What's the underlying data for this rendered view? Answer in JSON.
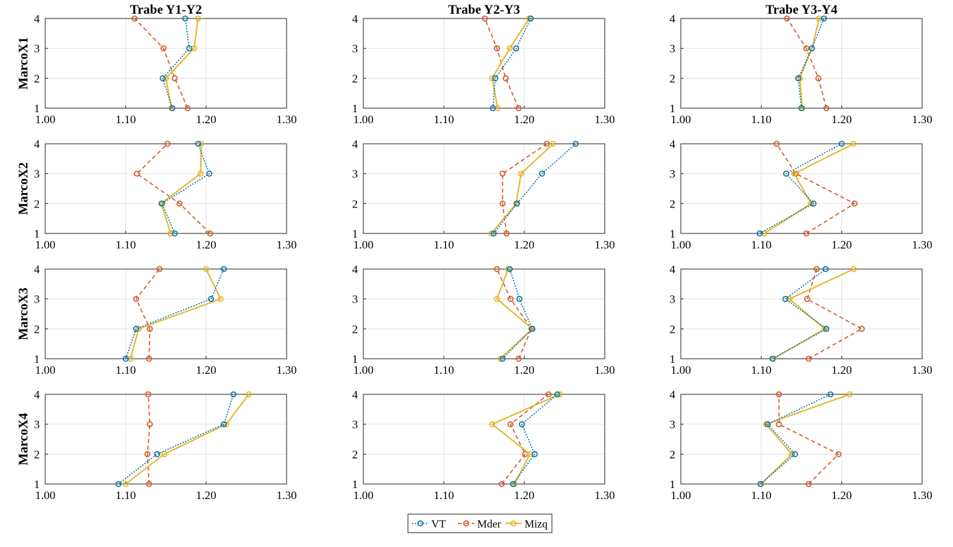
{
  "chart_data": {
    "type": "line",
    "column_titles": [
      "Trabe Y1-Y2",
      "Trabe Y2-Y3",
      "Trabe Y3-Y4"
    ],
    "row_labels": [
      "MarcoX1",
      "MarcoX2",
      "MarcoX3",
      "MarcoX4"
    ],
    "x_ticks": [
      "1.00",
      "1.10",
      "1.20",
      "1.30"
    ],
    "y_ticks": [
      "1",
      "2",
      "3",
      "4"
    ],
    "xlim": [
      1.0,
      1.3
    ],
    "ylim": [
      1,
      4
    ],
    "grid": true,
    "legend_position": "bottom-center",
    "series_styles": [
      {
        "name": "VT",
        "color": "#0e72a8",
        "dash": "dotted"
      },
      {
        "name": "Mder",
        "color": "#d15a26",
        "dash": "dashed"
      },
      {
        "name": "Mizq",
        "color": "#e3b82b",
        "dash": "solid"
      }
    ],
    "panels": [
      {
        "row": "MarcoX1",
        "column": "Trabe Y1-Y2",
        "levels": [
          1,
          2,
          3,
          4
        ],
        "VT": [
          1.158,
          1.146,
          1.179,
          1.174
        ],
        "Mder": [
          1.177,
          1.161,
          1.147,
          1.111
        ],
        "Mizq": [
          1.157,
          1.15,
          1.185,
          1.19
        ]
      },
      {
        "row": "MarcoX1",
        "column": "Trabe Y2-Y3",
        "levels": [
          1,
          2,
          3,
          4
        ],
        "VT": [
          1.161,
          1.164,
          1.19,
          1.208
        ],
        "Mder": [
          1.193,
          1.177,
          1.166,
          1.151
        ],
        "Mizq": [
          1.167,
          1.16,
          1.182,
          1.206
        ]
      },
      {
        "row": "MarcoX1",
        "column": "Trabe Y3-Y4",
        "levels": [
          1,
          2,
          3,
          4
        ],
        "VT": [
          1.15,
          1.146,
          1.163,
          1.178
        ],
        "Mder": [
          1.181,
          1.171,
          1.156,
          1.132
        ],
        "Mizq": [
          1.151,
          1.148,
          1.163,
          1.172
        ]
      },
      {
        "row": "MarcoX2",
        "column": "Trabe Y1-Y2",
        "levels": [
          1,
          2,
          3,
          4
        ],
        "VT": [
          1.161,
          1.145,
          1.204,
          1.19
        ],
        "Mder": [
          1.205,
          1.167,
          1.114,
          1.152
        ],
        "Mizq": [
          1.156,
          1.144,
          1.193,
          1.194
        ]
      },
      {
        "row": "MarcoX2",
        "column": "Trabe Y2-Y3",
        "levels": [
          1,
          2,
          3,
          4
        ],
        "VT": [
          1.162,
          1.191,
          1.222,
          1.264
        ],
        "Mder": [
          1.178,
          1.173,
          1.173,
          1.228
        ],
        "Mizq": [
          1.159,
          1.19,
          1.196,
          1.236
        ]
      },
      {
        "row": "MarcoX2",
        "column": "Trabe Y3-Y4",
        "levels": [
          1,
          2,
          3,
          4
        ],
        "VT": [
          1.098,
          1.165,
          1.131,
          1.2
        ],
        "Mder": [
          1.156,
          1.216,
          1.143,
          1.119
        ],
        "Mizq": [
          1.104,
          1.162,
          1.141,
          1.215
        ]
      },
      {
        "row": "MarcoX3",
        "column": "Trabe Y1-Y2",
        "levels": [
          1,
          2,
          3,
          4
        ],
        "VT": [
          1.1,
          1.113,
          1.206,
          1.222
        ],
        "Mder": [
          1.129,
          1.13,
          1.113,
          1.142
        ],
        "Mizq": [
          1.106,
          1.116,
          1.218,
          1.2
        ]
      },
      {
        "row": "MarcoX3",
        "column": "Trabe Y2-Y3",
        "levels": [
          1,
          2,
          3,
          4
        ],
        "VT": [
          1.173,
          1.21,
          1.194,
          1.182
        ],
        "Mder": [
          1.193,
          1.209,
          1.183,
          1.166
        ],
        "Mizq": [
          1.17,
          1.21,
          1.166,
          1.18
        ]
      },
      {
        "row": "MarcoX3",
        "column": "Trabe Y3-Y4",
        "levels": [
          1,
          2,
          3,
          4
        ],
        "VT": [
          1.114,
          1.181,
          1.13,
          1.18
        ],
        "Mder": [
          1.159,
          1.225,
          1.157,
          1.169
        ],
        "Mizq": [
          1.115,
          1.179,
          1.135,
          1.215
        ]
      },
      {
        "row": "MarcoX4",
        "column": "Trabe Y1-Y2",
        "levels": [
          1,
          2,
          3,
          4
        ],
        "VT": [
          1.091,
          1.139,
          1.222,
          1.234
        ],
        "Mder": [
          1.129,
          1.127,
          1.13,
          1.128
        ],
        "Mizq": [
          1.1,
          1.148,
          1.225,
          1.253
        ]
      },
      {
        "row": "MarcoX4",
        "column": "Trabe Y2-Y3",
        "levels": [
          1,
          2,
          3,
          4
        ],
        "VT": [
          1.186,
          1.213,
          1.197,
          1.241
        ],
        "Mder": [
          1.172,
          1.201,
          1.183,
          1.23
        ],
        "Mizq": [
          1.188,
          1.207,
          1.16,
          1.244
        ]
      },
      {
        "row": "MarcoX4",
        "column": "Trabe Y3-Y4",
        "levels": [
          1,
          2,
          3,
          4
        ],
        "VT": [
          1.099,
          1.142,
          1.108,
          1.186
        ],
        "Mder": [
          1.159,
          1.196,
          1.122,
          1.122
        ],
        "Mizq": [
          1.1,
          1.138,
          1.106,
          1.21
        ]
      }
    ]
  }
}
